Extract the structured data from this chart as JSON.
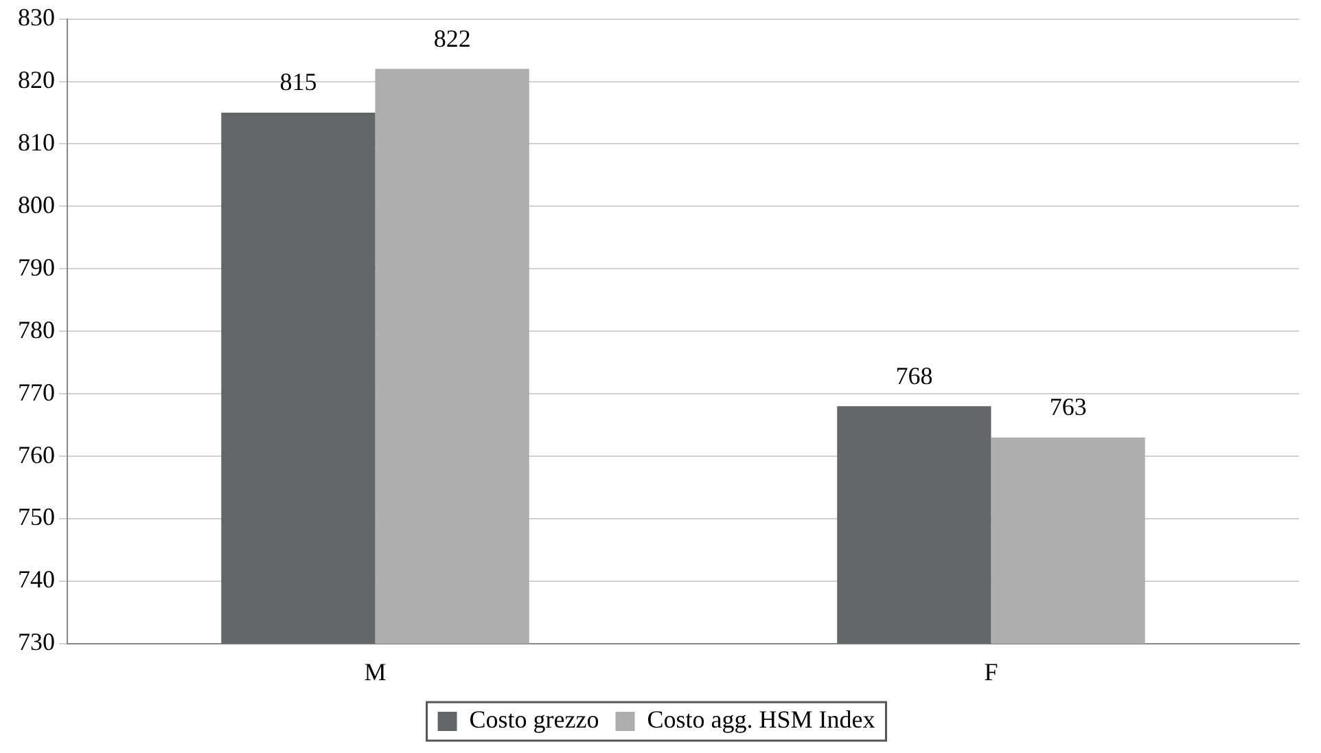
{
  "chart_data": {
    "type": "bar",
    "categories": [
      "M",
      "F"
    ],
    "series": [
      {
        "name": "Costo grezzo",
        "color": "#636566",
        "values": [
          815,
          768
        ]
      },
      {
        "name": "Costo agg. HSM Index",
        "color": "#aeaeae",
        "values": [
          822,
          763
        ]
      }
    ],
    "ylim": [
      730,
      830
    ],
    "yticks": [
      730,
      740,
      750,
      760,
      770,
      780,
      790,
      800,
      810,
      820,
      830
    ],
    "grid": "y",
    "legend": "bottom",
    "data_labels": true
  }
}
